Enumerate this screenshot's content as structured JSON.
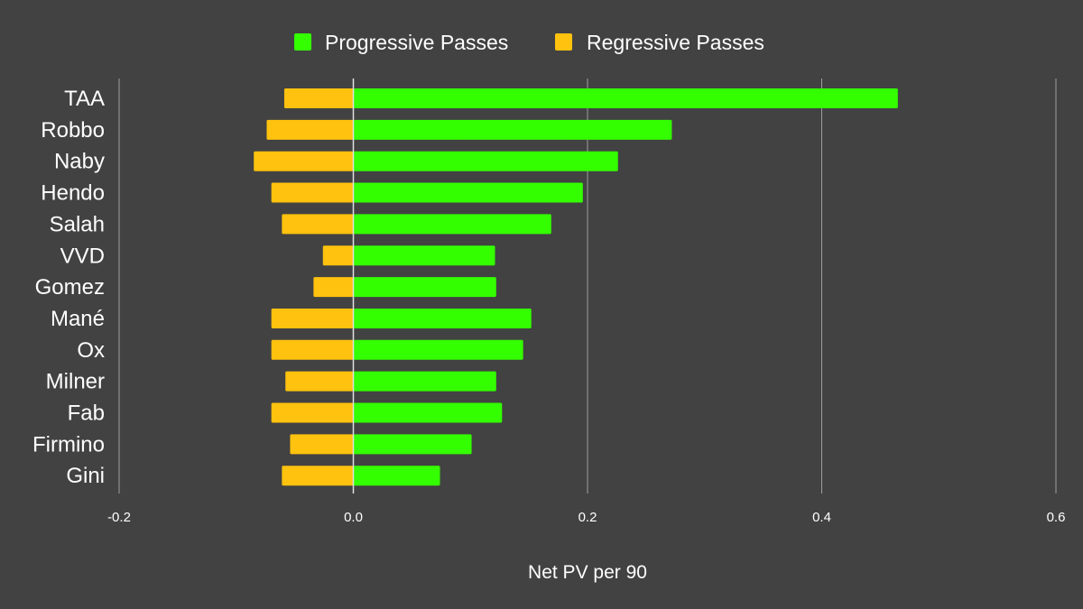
{
  "chart_data": {
    "type": "bar",
    "orientation": "horizontal",
    "categories": [
      "TAA",
      "Robbo",
      "Naby",
      "Hendo",
      "Salah",
      "VVD",
      "Gomez",
      "Mané",
      "Ox",
      "Milner",
      "Fab",
      "Firmino",
      "Gini"
    ],
    "series": [
      {
        "name": "Progressive Passes",
        "color": "#33ff00",
        "values": [
          0.465,
          0.272,
          0.226,
          0.196,
          0.169,
          0.121,
          0.122,
          0.152,
          0.145,
          0.122,
          0.127,
          0.101,
          0.074
        ]
      },
      {
        "name": "Regressive Passes",
        "color": "#ffc20e",
        "values": [
          -0.059,
          -0.074,
          -0.085,
          -0.07,
          -0.061,
          -0.026,
          -0.034,
          -0.07,
          -0.07,
          -0.058,
          -0.07,
          -0.054,
          -0.061
        ]
      }
    ],
    "xlabel": "Net PV per 90",
    "ylabel": "",
    "title": "",
    "xlim": [
      -0.2,
      0.6
    ],
    "xticks": [
      "-0.2",
      "0.0",
      "0.2",
      "0.4",
      "0.6"
    ],
    "legend_position": "top-center",
    "grid": true
  }
}
